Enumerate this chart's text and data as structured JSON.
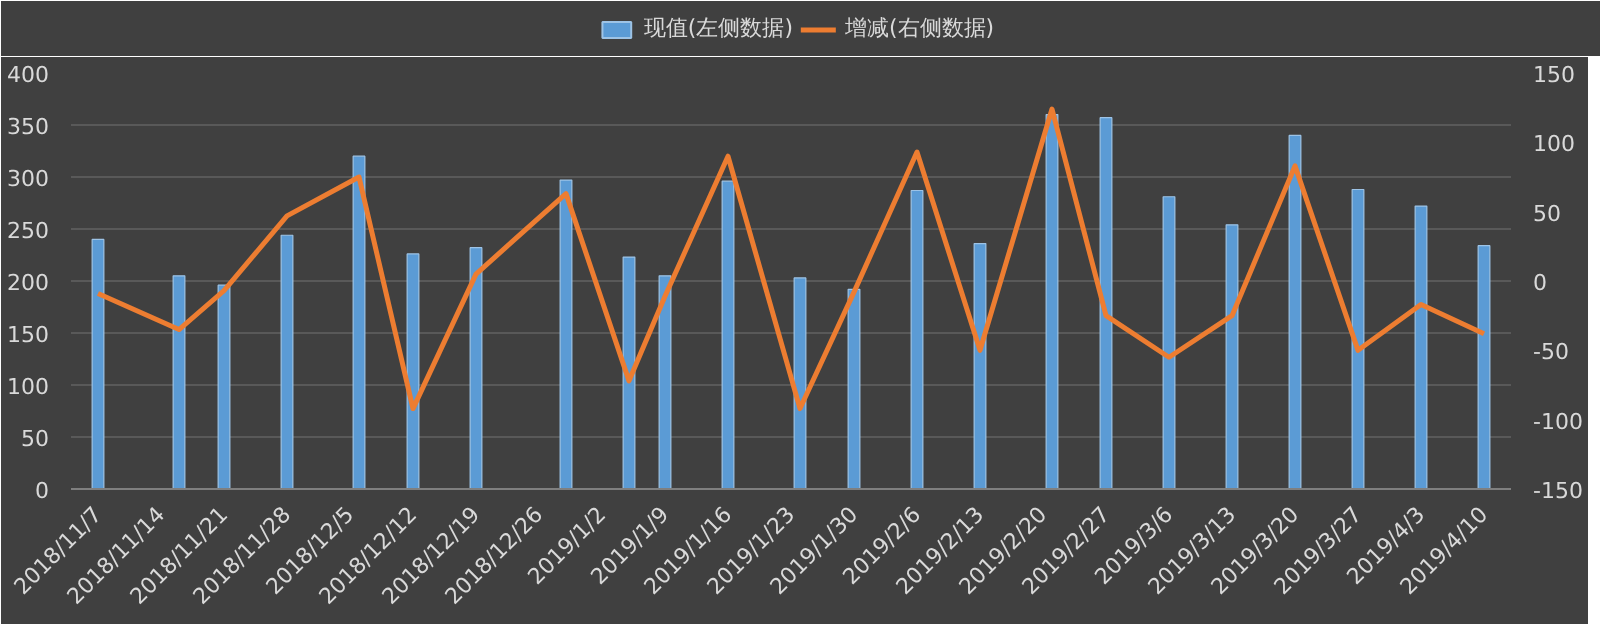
{
  "chart_data": {
    "type": "bar",
    "x": [
      "2018-11-07",
      "2018-11-16",
      "2018-11-21",
      "2018-11-28",
      "2018-12-06",
      "2018-12-12",
      "2018-12-19",
      "2018-12-29",
      "2019-01-05",
      "2019-01-09",
      "2019-01-16",
      "2019-01-24",
      "2019-01-30",
      "2019-02-06",
      "2019-02-13",
      "2019-02-21",
      "2019-02-27",
      "2019-03-06",
      "2019-03-13",
      "2019-03-20",
      "2019-03-27",
      "2019-04-03",
      "2019-04-10"
    ],
    "series": [
      {
        "name": "现值(左侧数据)",
        "type": "bar",
        "color": "#5b9bd5",
        "values": [
          240,
          205,
          196,
          244,
          320,
          226,
          232,
          297,
          223,
          205,
          296,
          203,
          192,
          287,
          236,
          360,
          357,
          281,
          254,
          340,
          288,
          272,
          234
        ]
      },
      {
        "name": "增减(右侧数据)",
        "type": "line",
        "axis": "y2",
        "color": "#ed7d31",
        "values": [
          -9,
          -35,
          -7,
          47,
          75,
          -92,
          5,
          63,
          -72,
          -11,
          90,
          -92,
          -8,
          93,
          -50,
          124,
          -25,
          -55,
          -25,
          83,
          -50,
          -17,
          -38
        ]
      }
    ],
    "xlim": [
      "2018-11-04",
      "2019-04-13"
    ],
    "xticks": [
      {
        "value": "2018-11-07",
        "label": "2018/11/7"
      },
      {
        "value": "2018-11-14",
        "label": "2018/11/14"
      },
      {
        "value": "2018-11-21",
        "label": "2018/11/21"
      },
      {
        "value": "2018-11-28",
        "label": "2018/11/28"
      },
      {
        "value": "2018-12-05",
        "label": "2018/12/5"
      },
      {
        "value": "2018-12-12",
        "label": "2018/12/12"
      },
      {
        "value": "2018-12-19",
        "label": "2018/12/19"
      },
      {
        "value": "2018-12-26",
        "label": "2018/12/26"
      },
      {
        "value": "2019-01-02",
        "label": "2019/1/2"
      },
      {
        "value": "2019-01-09",
        "label": "2019/1/9"
      },
      {
        "value": "2019-01-16",
        "label": "2019/1/16"
      },
      {
        "value": "2019-01-23",
        "label": "2019/1/23"
      },
      {
        "value": "2019-01-30",
        "label": "2019/1/30"
      },
      {
        "value": "2019-02-06",
        "label": "2019/2/6"
      },
      {
        "value": "2019-02-13",
        "label": "2019/2/13"
      },
      {
        "value": "2019-02-20",
        "label": "2019/2/20"
      },
      {
        "value": "2019-02-27",
        "label": "2019/2/27"
      },
      {
        "value": "2019-03-06",
        "label": "2019/3/6"
      },
      {
        "value": "2019-03-13",
        "label": "2019/3/13"
      },
      {
        "value": "2019-03-20",
        "label": "2019/3/20"
      },
      {
        "value": "2019-03-27",
        "label": "2019/3/27"
      },
      {
        "value": "2019-04-03",
        "label": "2019/4/3"
      },
      {
        "value": "2019-04-10",
        "label": "2019/4/10"
      }
    ],
    "ylim": [
      0,
      400
    ],
    "yticks": [
      0,
      50,
      100,
      150,
      200,
      250,
      300,
      350,
      400
    ],
    "y2lim": [
      -150,
      150
    ],
    "y2ticks": [
      -150,
      -100,
      -50,
      0,
      50,
      100,
      150
    ],
    "grid": "y",
    "legend": "top",
    "marker": "none",
    "line_style": "solid"
  }
}
